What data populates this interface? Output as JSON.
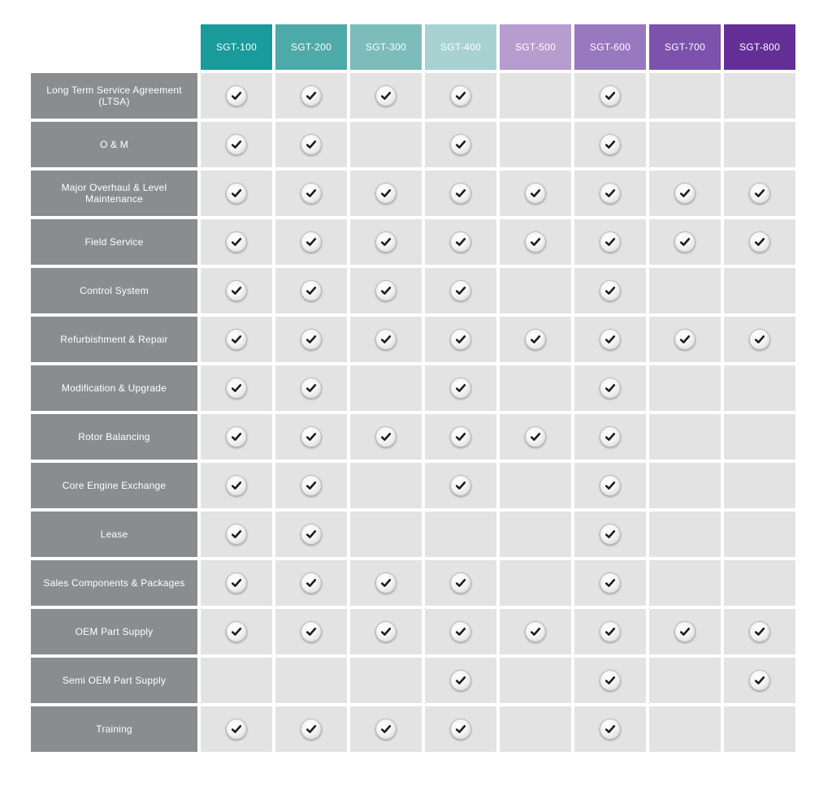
{
  "columns": [
    {
      "label": "SGT-100",
      "color": "#1a9a9b"
    },
    {
      "label": "SGT-200",
      "color": "#4daaa9"
    },
    {
      "label": "SGT-300",
      "color": "#7cbcba"
    },
    {
      "label": "SGT-400",
      "color": "#a8d2d1"
    },
    {
      "label": "SGT-500",
      "color": "#b69ccf"
    },
    {
      "label": "SGT-600",
      "color": "#9878bf"
    },
    {
      "label": "SGT-700",
      "color": "#7c52ad"
    },
    {
      "label": "SGT-800",
      "color": "#652f97"
    }
  ],
  "rows": [
    {
      "label": "Long Term Service Agreement (LTSA)",
      "checks": [
        true,
        true,
        true,
        true,
        false,
        true,
        false,
        false
      ]
    },
    {
      "label": "O & M",
      "checks": [
        true,
        true,
        false,
        true,
        false,
        true,
        false,
        false
      ]
    },
    {
      "label": "Major Overhaul & Level Maintenance",
      "checks": [
        true,
        true,
        true,
        true,
        true,
        true,
        true,
        true
      ]
    },
    {
      "label": "Field Service",
      "checks": [
        true,
        true,
        true,
        true,
        true,
        true,
        true,
        true
      ]
    },
    {
      "label": "Control System",
      "checks": [
        true,
        true,
        true,
        true,
        false,
        true,
        false,
        false
      ]
    },
    {
      "label": "Refurbishment & Repair",
      "checks": [
        true,
        true,
        true,
        true,
        true,
        true,
        true,
        true
      ]
    },
    {
      "label": "Modification & Upgrade",
      "checks": [
        true,
        true,
        false,
        true,
        false,
        true,
        false,
        false
      ]
    },
    {
      "label": "Rotor Balancing",
      "checks": [
        true,
        true,
        true,
        true,
        true,
        true,
        false,
        false
      ]
    },
    {
      "label": "Core Engine Exchange",
      "checks": [
        true,
        true,
        false,
        true,
        false,
        true,
        false,
        false
      ]
    },
    {
      "label": "Lease",
      "checks": [
        true,
        true,
        false,
        false,
        false,
        true,
        false,
        false
      ]
    },
    {
      "label": "Sales Components & Packages",
      "checks": [
        true,
        true,
        true,
        true,
        false,
        true,
        false,
        false
      ]
    },
    {
      "label": "OEM Part Supply",
      "checks": [
        true,
        true,
        true,
        true,
        true,
        true,
        true,
        true
      ]
    },
    {
      "label": "Semi OEM Part Supply",
      "checks": [
        false,
        false,
        false,
        true,
        false,
        true,
        false,
        true
      ]
    },
    {
      "label": "Training",
      "checks": [
        true,
        true,
        true,
        true,
        false,
        true,
        false,
        false
      ]
    }
  ],
  "icons": {
    "check": "check-mark-icon"
  }
}
